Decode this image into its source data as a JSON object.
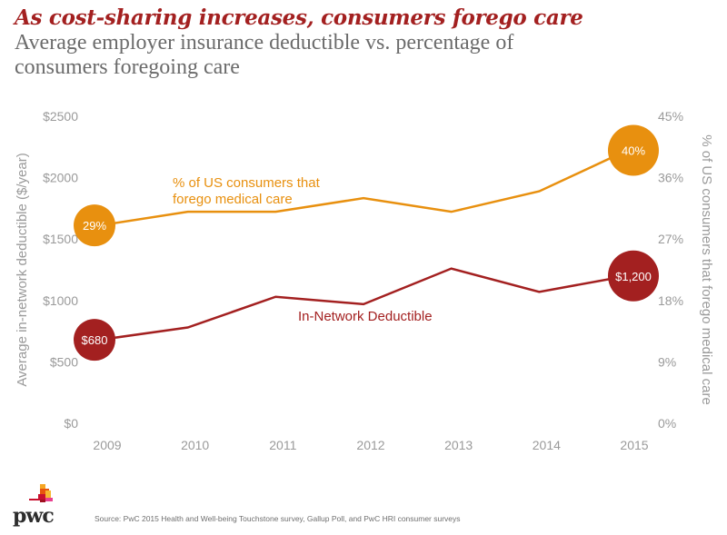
{
  "header": {
    "title": "As cost-sharing increases, consumers forego care",
    "subtitle": "Average employer insurance deductible vs. percentage of consumers foregoing care"
  },
  "colors": {
    "title": "#a32020",
    "orange_series": "#e8900f",
    "red_series": "#a32020",
    "axis_text": "#9a9a9a"
  },
  "chart_data": {
    "type": "line",
    "title": "As cost-sharing increases, consumers forego care",
    "subtitle": "Average employer insurance deductible vs. percentage of consumers foregoing care",
    "x": [
      "2009",
      "2010",
      "2011",
      "2012",
      "2013",
      "2014",
      "2015"
    ],
    "xlabel": "",
    "ylabel": "Average in-network deductible ($/year)",
    "ylim": [
      0,
      2500
    ],
    "yticks": [
      "$0",
      "$500",
      "$1000",
      "$1500",
      "$2000",
      "$2500"
    ],
    "ytick_values": [
      0,
      500,
      1000,
      1500,
      2000,
      2500
    ],
    "y2label": "% of US consumers that forego medical care",
    "y2lim": [
      0,
      45
    ],
    "y2ticks": [
      "0%",
      "9%",
      "18%",
      "27%",
      "36%",
      "45%"
    ],
    "y2tick_values": [
      0,
      9,
      18,
      27,
      36,
      45
    ],
    "grid": false,
    "series": [
      {
        "name": "% of US consumers that forego medical care",
        "label_lines": [
          "% of US consumers that",
          "forego medical care"
        ],
        "axis": "right",
        "color": "#e8900f",
        "values": [
          29,
          31,
          31,
          33,
          31,
          34,
          40
        ],
        "endpoint_labels": {
          "first": "29%",
          "last": "40%"
        }
      },
      {
        "name": "In-Network Deductible",
        "label_lines": [
          "In-Network Deductible"
        ],
        "axis": "left",
        "color": "#a32020",
        "values": [
          680,
          780,
          1030,
          970,
          1260,
          1070,
          1200
        ],
        "endpoint_labels": {
          "first": "$680",
          "last": "$1,200"
        }
      }
    ]
  },
  "footer": {
    "logo_text": "pwc",
    "source": "Source: PwC 2015 Health and Well-being Touchstone survey, Gallup Poll, and PwC HRI consumer surveys"
  }
}
